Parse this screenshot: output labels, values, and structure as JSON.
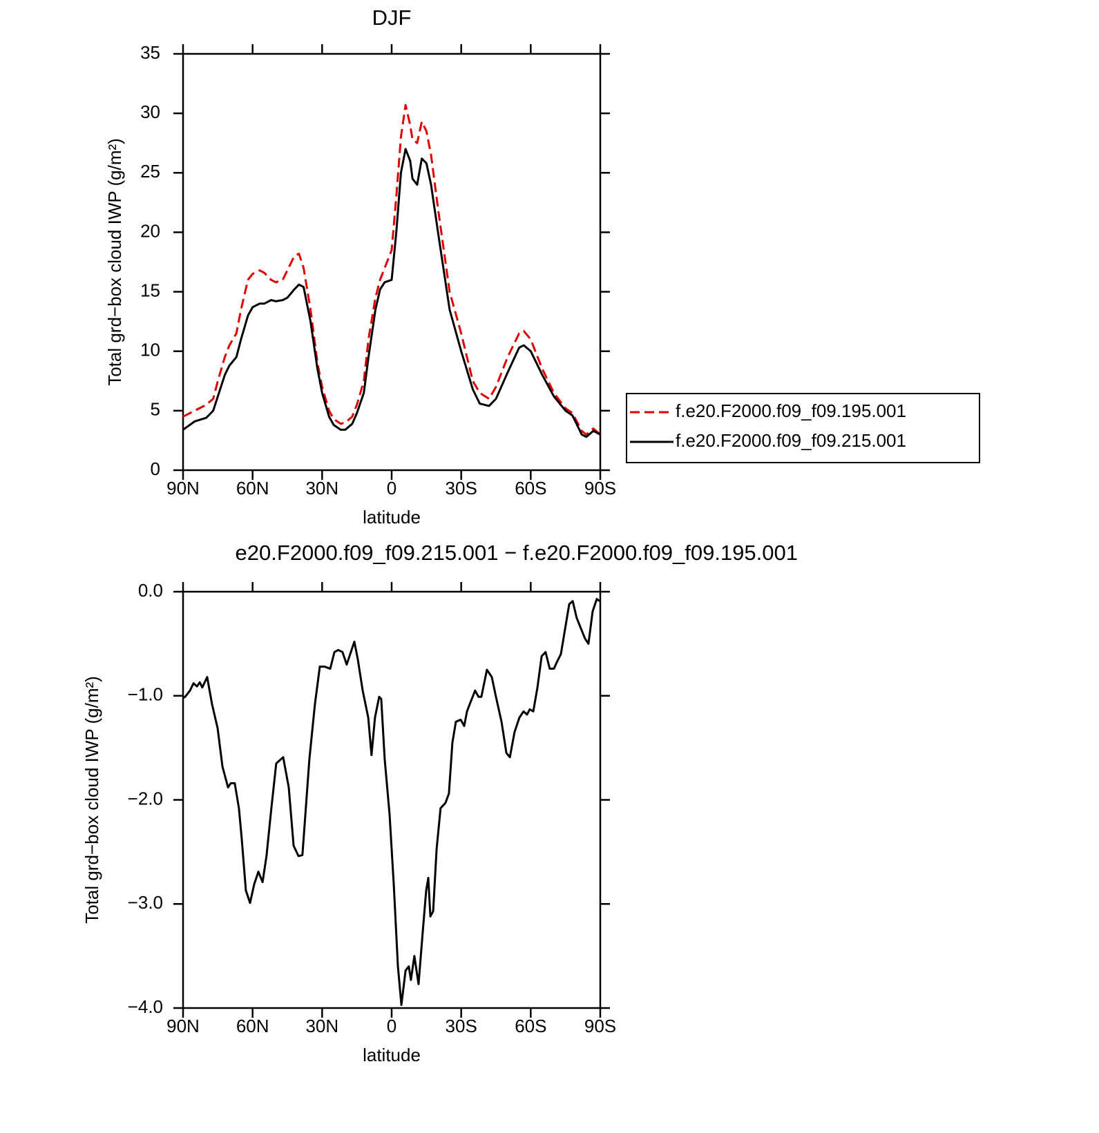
{
  "chart_data": [
    {
      "type": "line",
      "title": "DJF",
      "x_label": "latitude",
      "y_label": "Total grd−box cloud IWP (g/m²)",
      "x": [
        90,
        85,
        80,
        77,
        75,
        72,
        70,
        67,
        65,
        62,
        60,
        57,
        55,
        52,
        50,
        47,
        45,
        42,
        40,
        38,
        35,
        32,
        30,
        27,
        25,
        22,
        20,
        17,
        15,
        12,
        10,
        7,
        5,
        3,
        0,
        -2,
        -4,
        -6,
        -8,
        -9,
        -11,
        -13,
        -15,
        -17,
        -20,
        -25,
        -30,
        -35,
        -38,
        -42,
        -45,
        -50,
        -55,
        -57,
        -60,
        -65,
        -70,
        -75,
        -78,
        -82,
        -84,
        -87,
        -90
      ],
      "series": [
        {
          "name": "f.e20.F2000.f09_f09.195.001",
          "color": "#e00000",
          "line_style": "dashed",
          "values": [
            4.5,
            5.0,
            5.5,
            6.0,
            7.5,
            9.5,
            10.5,
            11.5,
            13.5,
            16.0,
            16.5,
            16.8,
            16.6,
            16.0,
            15.8,
            16.0,
            16.8,
            18.0,
            18.2,
            17.0,
            13.5,
            9.0,
            7.0,
            5.0,
            4.3,
            3.9,
            4.0,
            4.5,
            5.5,
            7.5,
            11.0,
            14.5,
            16.0,
            17.0,
            18.5,
            23.0,
            28.0,
            30.7,
            29.0,
            27.8,
            27.5,
            29.3,
            28.5,
            26.5,
            22.0,
            15.0,
            11.5,
            7.5,
            6.5,
            6.0,
            7.0,
            9.5,
            11.5,
            11.7,
            11.0,
            8.5,
            6.5,
            5.2,
            4.8,
            3.3,
            3.0,
            3.5,
            3.0
          ]
        },
        {
          "name": "f.e20.F2000.f09_f09.215.001",
          "color": "#000000",
          "line_style": "solid",
          "values": [
            3.4,
            4.1,
            4.4,
            5.0,
            6.2,
            8.0,
            8.8,
            9.5,
            11.0,
            13.0,
            13.7,
            14.0,
            14.0,
            14.3,
            14.2,
            14.3,
            14.5,
            15.2,
            15.6,
            15.4,
            12.5,
            8.5,
            6.5,
            4.5,
            3.8,
            3.4,
            3.4,
            3.9,
            4.8,
            6.5,
            9.5,
            13.5,
            15.2,
            15.8,
            16.0,
            20.0,
            25.0,
            27.0,
            26.0,
            24.5,
            24.0,
            26.2,
            25.8,
            24.0,
            20.0,
            13.5,
            10.0,
            6.8,
            5.6,
            5.4,
            6.0,
            8.2,
            10.3,
            10.5,
            10.0,
            8.0,
            6.2,
            5.0,
            4.6,
            3.0,
            2.8,
            3.3,
            3.0
          ]
        }
      ],
      "xlim": [
        90,
        -90
      ],
      "xticks": [
        {
          "value": 90,
          "label": "90N"
        },
        {
          "value": 60,
          "label": "60N"
        },
        {
          "value": 30,
          "label": "30N"
        },
        0,
        {
          "value": -30,
          "label": "30S"
        },
        {
          "value": -60,
          "label": "60S"
        },
        {
          "value": -90,
          "label": "90S"
        }
      ],
      "ylim": [
        0,
        35
      ],
      "yticks": [
        0,
        5,
        10,
        15,
        20,
        25,
        30,
        35
      ],
      "legend": "right"
    },
    {
      "type": "line",
      "title": "e20.F2000.f09_f09.215.001 − f.e20.F2000.f09_f09.195.001",
      "x_label": "latitude",
      "y_label": "Total grd−box cloud IWP (g/m²)",
      "x": [
        90,
        89.1,
        87,
        85.5,
        84,
        82.8,
        81.7,
        79.6,
        77.5,
        75.1,
        73,
        70.6,
        69.4,
        67.7,
        65.9,
        64.7,
        62.9,
        61.1,
        59.3,
        57.5,
        55.7,
        54,
        51.9,
        49.8,
        46.8,
        44.4,
        42.3,
        40.2,
        38.5,
        35.5,
        33.1,
        31,
        28.9,
        26.5,
        24.7,
        23,
        21.2,
        19.4,
        17.6,
        16.1,
        14.6,
        12.5,
        10.1,
        8.7,
        7.2,
        5.4,
        4.5,
        3,
        0.9,
        -0.9,
        -2.7,
        -4.2,
        -6,
        -7.4,
        -8.3,
        -9.8,
        -11.6,
        -13.4,
        -14.9,
        -15.8,
        -16.7,
        -17.9,
        -19.4,
        -21.1,
        -23.2,
        -24.7,
        -26.2,
        -27.7,
        -29.8,
        -31.3,
        -32.5,
        -33.7,
        -36,
        -37.5,
        -38.7,
        -41.1,
        -43.2,
        -45,
        -47.4,
        -49.5,
        -51,
        -53,
        -55.1,
        -56.9,
        -58.4,
        -59.6,
        -61.1,
        -62.9,
        -64.7,
        -66.4,
        -68.2,
        -70,
        -71.2,
        -73,
        -74.8,
        -76.6,
        -78.1,
        -79.8,
        -81.6,
        -83.4,
        -84.9,
        -86.7,
        -88.5,
        -89.7
      ],
      "series": [
        {
          "color": "#000000",
          "line_style": "solid",
          "values": [
            -1.02,
            -1.01,
            -0.95,
            -0.88,
            -0.91,
            -0.87,
            -0.92,
            -0.82,
            -1.08,
            -1.31,
            -1.68,
            -1.88,
            -1.84,
            -1.84,
            -2.08,
            -2.37,
            -2.87,
            -2.99,
            -2.81,
            -2.69,
            -2.79,
            -2.54,
            -2.08,
            -1.65,
            -1.59,
            -1.88,
            -2.44,
            -2.54,
            -2.53,
            -1.61,
            -1.08,
            -0.72,
            -0.72,
            -0.74,
            -0.58,
            -0.56,
            -0.58,
            -0.7,
            -0.58,
            -0.48,
            -0.65,
            -0.95,
            -1.21,
            -1.57,
            -1.21,
            -1.01,
            -1.03,
            -1.61,
            -2.14,
            -2.81,
            -3.6,
            -3.97,
            -3.64,
            -3.6,
            -3.73,
            -3.5,
            -3.77,
            -3.27,
            -2.87,
            -2.75,
            -3.12,
            -3.07,
            -2.47,
            -2.08,
            -2.03,
            -1.94,
            -1.45,
            -1.25,
            -1.23,
            -1.29,
            -1.15,
            -1.08,
            -0.95,
            -1.01,
            -1.01,
            -0.75,
            -0.82,
            -1.01,
            -1.25,
            -1.55,
            -1.59,
            -1.35,
            -1.21,
            -1.15,
            -1.18,
            -1.13,
            -1.15,
            -0.92,
            -0.62,
            -0.58,
            -0.74,
            -0.74,
            -0.68,
            -0.6,
            -0.36,
            -0.12,
            -0.09,
            -0.25,
            -0.35,
            -0.45,
            -0.5,
            -0.19,
            -0.07,
            -0.09
          ]
        }
      ],
      "xlim": [
        90,
        -90
      ],
      "xticks": [
        {
          "value": 90,
          "label": "90N"
        },
        {
          "value": 60,
          "label": "60N"
        },
        {
          "value": 30,
          "label": "30N"
        },
        0,
        {
          "value": -30,
          "label": "30S"
        },
        {
          "value": -60,
          "label": "60S"
        },
        {
          "value": -90,
          "label": "90S"
        }
      ],
      "ylim": [
        -4,
        0
      ],
      "yticks": [
        {
          "value": -4,
          "label": "−4.0"
        },
        {
          "value": -3,
          "label": "−3.0"
        },
        {
          "value": -2,
          "label": "−2.0"
        },
        {
          "value": -1,
          "label": "−1.0"
        },
        {
          "value": 0,
          "label": "0.0"
        }
      ]
    }
  ]
}
